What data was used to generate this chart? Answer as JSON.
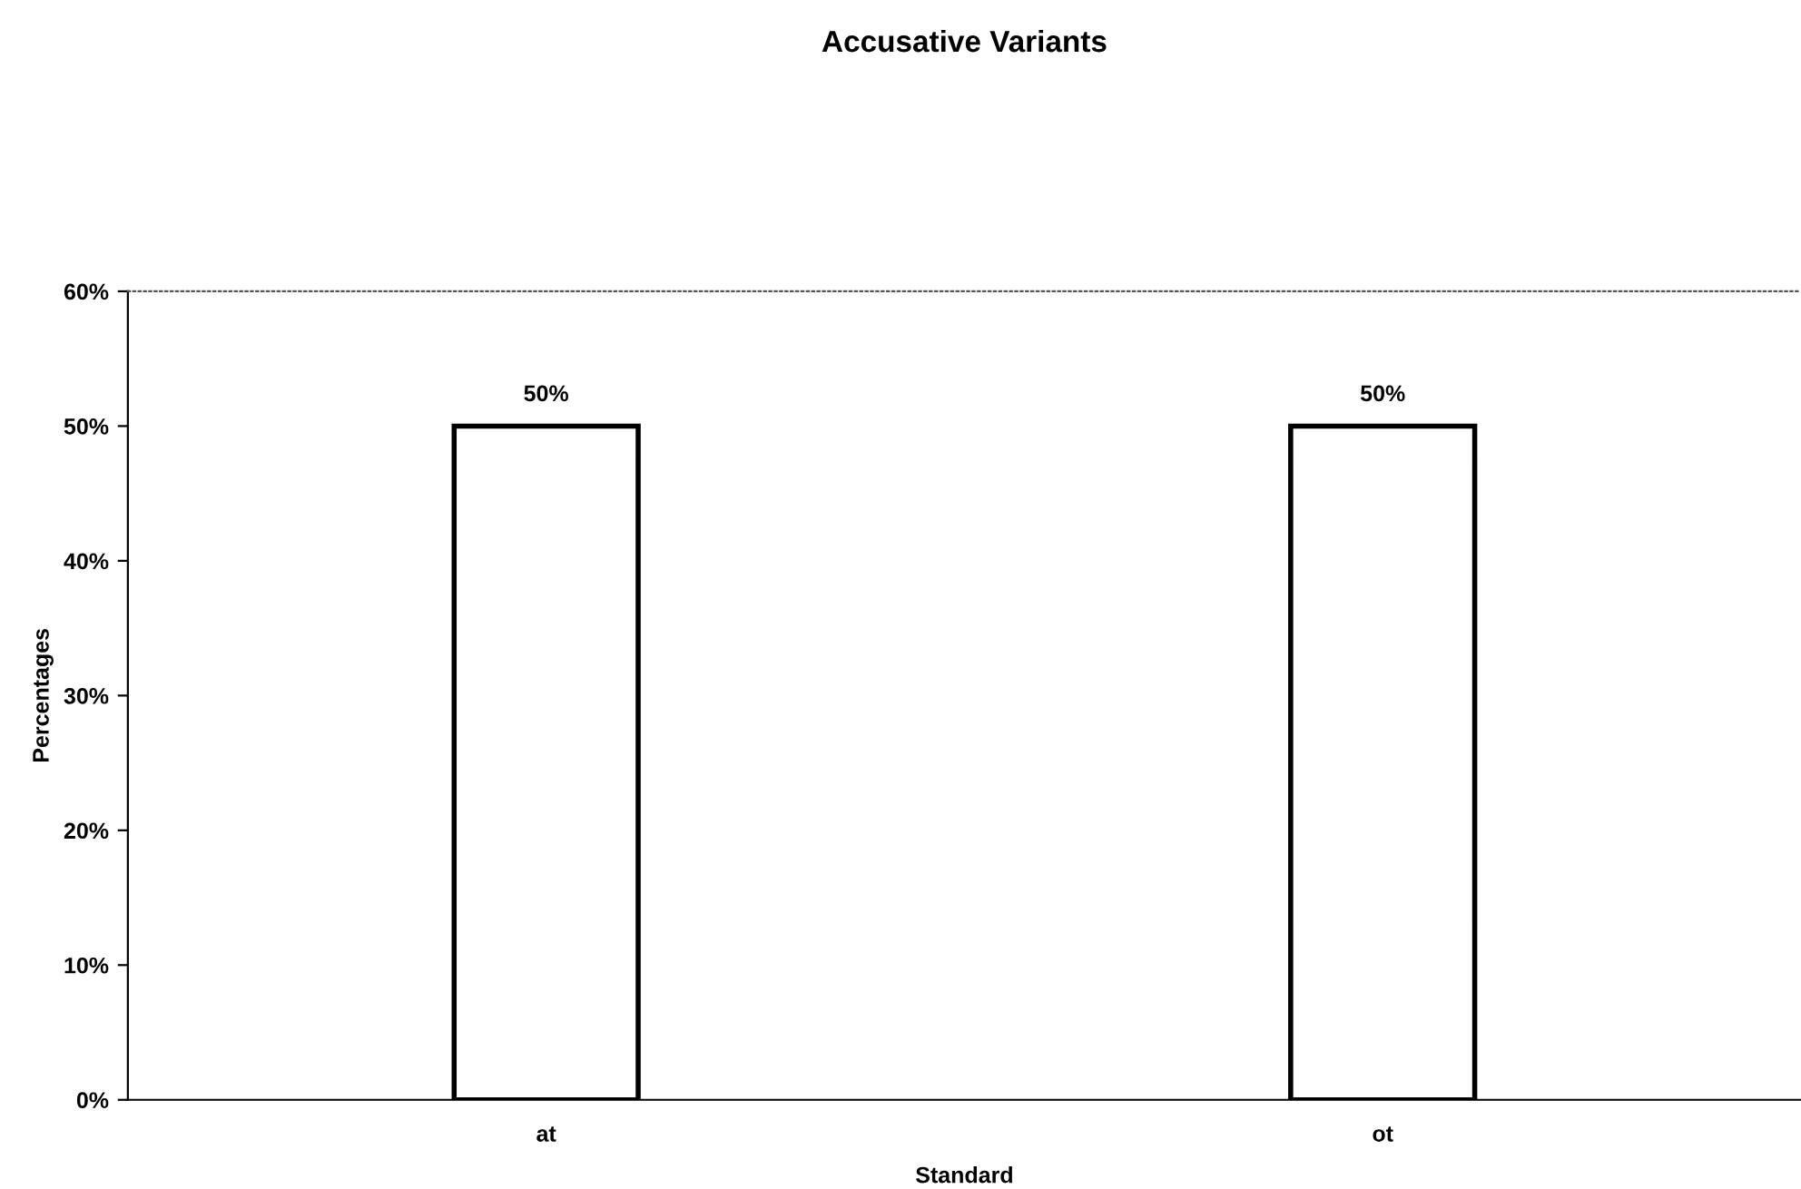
{
  "chart_data": {
    "type": "bar",
    "title": "Accusative Variants",
    "xlabel": "Standard",
    "ylabel": "Percentages",
    "categories": [
      "at",
      "ot"
    ],
    "series": [
      {
        "color": "#ffffff",
        "values": [
          50,
          50
        ],
        "value_labels": [
          "50%",
          "50%"
        ]
      }
    ],
    "ylim": [
      0,
      60
    ],
    "yticks": [
      {
        "value": 0,
        "label": "0%"
      },
      {
        "value": 10,
        "label": "10%"
      },
      {
        "value": 20,
        "label": "20%"
      },
      {
        "value": 30,
        "label": "30%"
      },
      {
        "value": 40,
        "label": "40%"
      },
      {
        "value": 50,
        "label": "50%"
      },
      {
        "value": 60,
        "label": "60%"
      }
    ],
    "grid": false
  }
}
